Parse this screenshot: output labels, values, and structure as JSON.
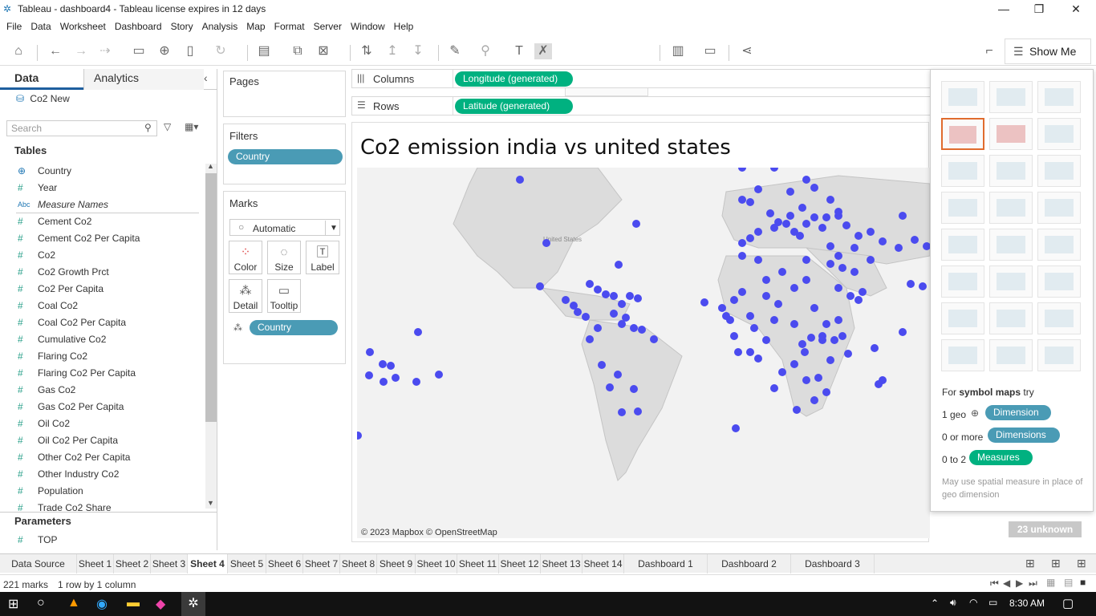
{
  "window": {
    "title": "Tableau - dashboard4 - Tableau license expires in 12 days"
  },
  "menu": [
    "File",
    "Data",
    "Worksheet",
    "Dashboard",
    "Story",
    "Analysis",
    "Map",
    "Format",
    "Server",
    "Window",
    "Help"
  ],
  "toolbar": {
    "show_me_label": "Show Me"
  },
  "left": {
    "tab_data": "Data",
    "tab_analytics": "Analytics",
    "datasource": "Co2 New",
    "search_placeholder": "Search",
    "tables_heading": "Tables",
    "fields": [
      {
        "icon": "⊕",
        "label": "Country"
      },
      {
        "icon": "#",
        "label": "Year"
      },
      {
        "icon": "Abc",
        "label": "Measure Names"
      },
      {
        "icon": "#",
        "label": "Cement Co2"
      },
      {
        "icon": "#",
        "label": "Cement Co2 Per Capita"
      },
      {
        "icon": "#",
        "label": "Co2"
      },
      {
        "icon": "#",
        "label": "Co2 Growth Prct"
      },
      {
        "icon": "#",
        "label": "Co2 Per Capita"
      },
      {
        "icon": "#",
        "label": "Coal Co2"
      },
      {
        "icon": "#",
        "label": "Coal Co2 Per Capita"
      },
      {
        "icon": "#",
        "label": "Cumulative Co2"
      },
      {
        "icon": "#",
        "label": "Flaring Co2"
      },
      {
        "icon": "#",
        "label": "Flaring Co2 Per Capita"
      },
      {
        "icon": "#",
        "label": "Gas Co2"
      },
      {
        "icon": "#",
        "label": "Gas Co2 Per Capita"
      },
      {
        "icon": "#",
        "label": "Oil Co2"
      },
      {
        "icon": "#",
        "label": "Oil Co2 Per Capita"
      },
      {
        "icon": "#",
        "label": "Other Co2 Per Capita"
      },
      {
        "icon": "#",
        "label": "Other Industry Co2"
      },
      {
        "icon": "#",
        "label": "Population"
      },
      {
        "icon": "#",
        "label": "Trade Co2 Share"
      }
    ],
    "parameters_heading": "Parameters",
    "parameters": [
      {
        "icon": "#",
        "label": "TOP"
      }
    ]
  },
  "shelves": {
    "pages": "Pages",
    "filters": "Filters",
    "filter_pill": "Country",
    "marks": "Marks",
    "mark_type": "Automatic",
    "mark_buttons": [
      "Color",
      "Size",
      "Label",
      "Detail",
      "Tooltip"
    ],
    "marks_pill": "Country",
    "columns": "Columns",
    "rows": "Rows",
    "columns_pill": "Longitude (generated)",
    "rows_pill": "Latitude (generated)"
  },
  "view": {
    "title": "Co2 emission india  vs united states",
    "attribution": "© 2023 Mapbox © OpenStreetMap",
    "unknown": "23 unknown",
    "map_label_us": "United States",
    "dot_color": "#4b4bef"
  },
  "showme": {
    "for_text": "For ",
    "chart_name": "symbol maps",
    "try_text": " try",
    "req1_a": "1 geo",
    "req1_pill": "Dimension",
    "req2_a": "0 or more",
    "req2_pill": "Dimensions",
    "req3_a": "0 to 2",
    "req3_pill": "Measures",
    "note": "May use spatial measure in place of geo dimension"
  },
  "sheet_tabs": [
    "Data Source",
    "Sheet 1",
    "Sheet 2",
    "Sheet 3",
    "Sheet 4",
    "Sheet 5",
    "Sheet 6",
    "Sheet 7",
    "Sheet 8",
    "Sheet 9",
    "Sheet 10",
    "Sheet 11",
    "Sheet 12",
    "Sheet 13",
    "Sheet 14",
    "Dashboard 1",
    "Dashboard 2",
    "Dashboard 3"
  ],
  "active_tab": "Sheet 4",
  "status": {
    "marks": "221 marks",
    "dims": "1 row by 1 column"
  },
  "taskbar": {
    "time": "8:30 AM"
  }
}
